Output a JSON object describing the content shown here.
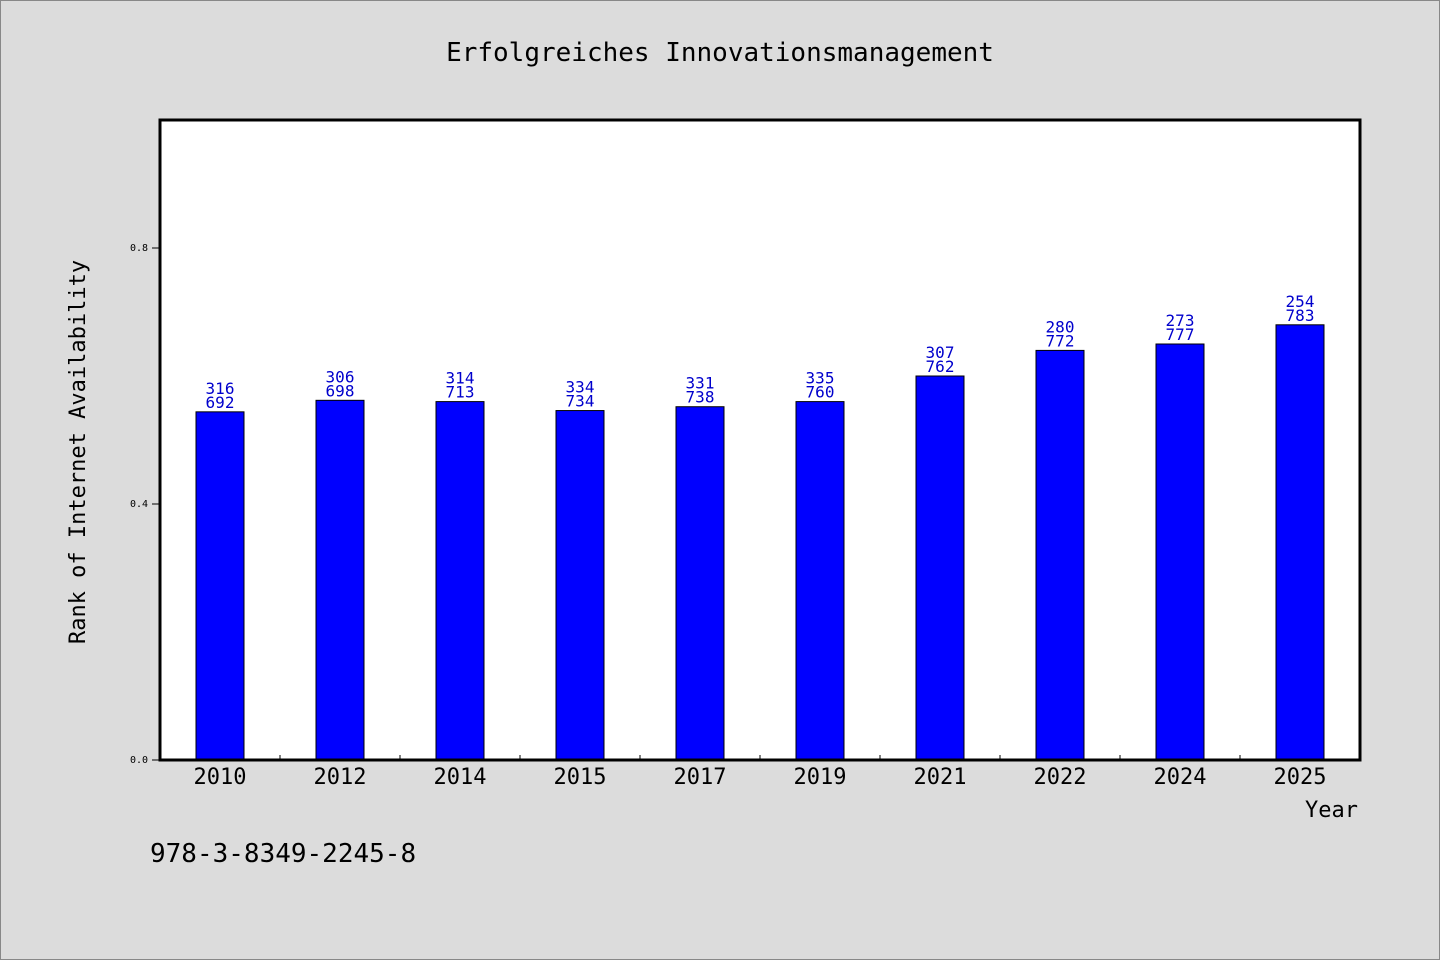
{
  "chart_data": {
    "type": "bar",
    "title": "Erfolgreiches Innovationsmanagement",
    "xlabel": "Year",
    "ylabel": "Rank of Internet Availability",
    "categories": [
      "2010",
      "2012",
      "2014",
      "2015",
      "2017",
      "2019",
      "2021",
      "2022",
      "2024",
      "2025"
    ],
    "series": [
      {
        "values": [
          0.544,
          0.562,
          0.56,
          0.546,
          0.552,
          0.56,
          0.6,
          0.64,
          0.65,
          0.68
        ]
      }
    ],
    "label_top": [
      "316",
      "306",
      "314",
      "334",
      "331",
      "335",
      "307",
      "280",
      "273",
      "254"
    ],
    "label_bottom": [
      "692",
      "698",
      "713",
      "734",
      "738",
      "760",
      "762",
      "772",
      "777",
      "783"
    ],
    "ylim": [
      0,
      1.0
    ],
    "yticks": [
      "0.0",
      "0.4",
      "0.8"
    ],
    "ytick_values": [
      0.0,
      0.4,
      0.8
    ],
    "grid": false,
    "bar_color": "#0000ff",
    "label_color": "#0000cc",
    "plot_background": "#ffffff",
    "page_background": "#dcdcdc"
  },
  "footer_text": "978-3-8349-2245-8"
}
